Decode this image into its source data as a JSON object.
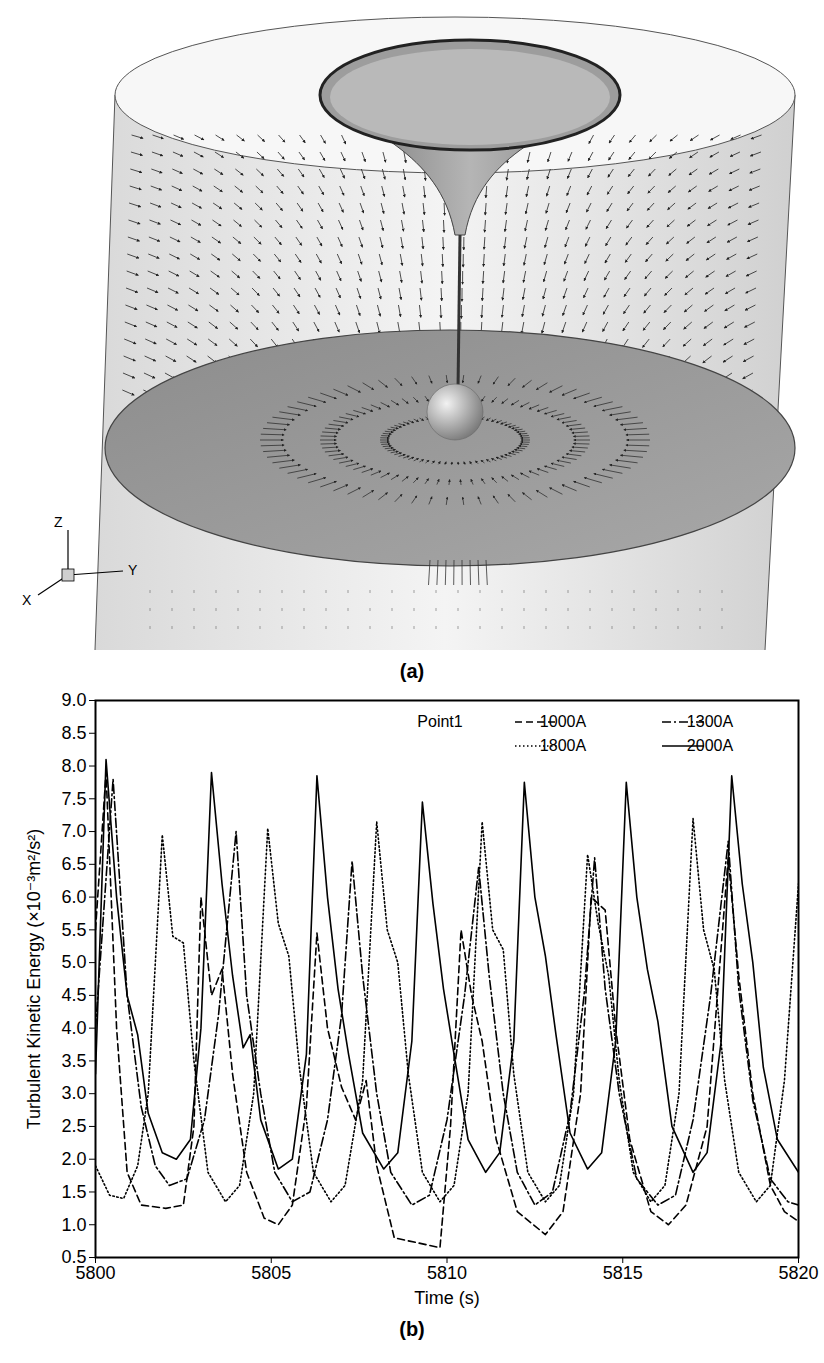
{
  "figure": {
    "panel_a": {
      "label": "(a)",
      "axis_labels": [
        "Z",
        "Y",
        "X"
      ]
    },
    "panel_b_label": "(b)"
  },
  "chart_data": {
    "type": "line",
    "x_label": "Time (s)",
    "y_label": "Turbulent Kinetic Energy (×10⁻³m²/s²)",
    "legend_title": "Point1",
    "legend": "upper right",
    "xlim": [
      5800,
      5820
    ],
    "xticks": [
      5800,
      5805,
      5810,
      5815,
      5820
    ],
    "ylim": [
      0.5,
      9.0
    ],
    "yticks": [
      {
        "value": 0.5,
        "label": "0.5"
      },
      {
        "value": 1,
        "label": "1.0"
      },
      {
        "value": 1.5,
        "label": "1.5"
      },
      {
        "value": 2,
        "label": "2.0"
      },
      {
        "value": 2.5,
        "label": "2.5"
      },
      {
        "value": 3,
        "label": "3.0"
      },
      {
        "value": 3.5,
        "label": "3.5"
      },
      {
        "value": 4,
        "label": "4.0"
      },
      {
        "value": 4.5,
        "label": "4.5"
      },
      {
        "value": 5,
        "label": "5.0"
      },
      {
        "value": 5.5,
        "label": "5.5"
      },
      {
        "value": 6,
        "label": "6.0"
      },
      {
        "value": 6.5,
        "label": "6.5"
      },
      {
        "value": 7,
        "label": "7.0"
      },
      {
        "value": 7.5,
        "label": "7.5"
      },
      {
        "value": 8,
        "label": "8.0"
      },
      {
        "value": 8.5,
        "label": "8.5"
      },
      {
        "value": 9,
        "label": "9.0"
      }
    ],
    "grid": false,
    "series": [
      {
        "name": "1000A",
        "color": "#000000",
        "line_style": "dashed",
        "x": [
          5800.0,
          5800.3,
          5800.6,
          5800.9,
          5801.3,
          5802.0,
          5802.5,
          5802.8,
          5803.0,
          5803.3,
          5803.6,
          5803.9,
          5804.3,
          5804.8,
          5805.2,
          5805.6,
          5806.0,
          5806.3,
          5806.6,
          5807.0,
          5807.4,
          5807.7,
          5808.0,
          5808.5,
          5809.2,
          5809.8,
          5810.1,
          5810.4,
          5810.7,
          5811.0,
          5811.4,
          5812.0,
          5812.8,
          5813.3,
          5813.8,
          5814.1,
          5814.5,
          5814.8,
          5815.2,
          5815.8,
          5816.3,
          5816.8,
          5817.4,
          5818.0,
          5818.3,
          5818.7,
          5819.2,
          5819.6,
          5820.0
        ],
        "values": [
          5.5,
          7.9,
          4.0,
          1.8,
          1.3,
          1.25,
          1.3,
          2.5,
          6.0,
          4.5,
          4.9,
          3.3,
          1.8,
          1.1,
          1.0,
          1.3,
          2.8,
          5.45,
          4.0,
          3.1,
          2.6,
          3.2,
          1.9,
          0.8,
          0.72,
          0.65,
          2.5,
          5.5,
          4.5,
          3.8,
          2.3,
          1.2,
          0.85,
          1.2,
          3.0,
          6.0,
          5.8,
          4.0,
          2.3,
          1.2,
          1.0,
          1.3,
          2.5,
          6.6,
          4.8,
          3.0,
          1.6,
          1.2,
          1.05
        ]
      },
      {
        "name": "1300A",
        "color": "#000000",
        "line_style": "dashdot",
        "x": [
          5800.0,
          5800.5,
          5800.9,
          5801.3,
          5801.7,
          5802.1,
          5802.6,
          5803.1,
          5803.5,
          5804.0,
          5804.3,
          5804.7,
          5805.1,
          5805.6,
          5806.1,
          5806.6,
          5807.0,
          5807.3,
          5807.6,
          5808.0,
          5808.4,
          5809.0,
          5809.5,
          5810.0,
          5810.5,
          5810.9,
          5811.2,
          5811.6,
          5812.0,
          5812.5,
          5813.0,
          5813.5,
          5813.9,
          5814.2,
          5814.5,
          5814.9,
          5815.4,
          5816.0,
          5816.5,
          5817.0,
          5817.5,
          5818.0,
          5818.3,
          5818.7,
          5819.2,
          5819.7,
          5820.0
        ],
        "values": [
          4.0,
          7.8,
          4.5,
          2.8,
          1.9,
          1.6,
          1.7,
          2.6,
          4.2,
          7.0,
          4.5,
          3.0,
          1.8,
          1.35,
          1.5,
          2.6,
          4.2,
          6.55,
          4.8,
          3.0,
          1.8,
          1.3,
          1.45,
          2.6,
          4.5,
          6.45,
          4.8,
          3.0,
          1.8,
          1.3,
          1.5,
          2.7,
          4.5,
          6.6,
          4.6,
          3.0,
          1.7,
          1.3,
          1.45,
          2.6,
          4.5,
          6.85,
          4.6,
          2.9,
          1.7,
          1.35,
          1.3
        ]
      },
      {
        "name": "1800A",
        "color": "#000000",
        "line_style": "dotted",
        "x": [
          5800.0,
          5800.4,
          5800.8,
          5801.2,
          5801.5,
          5801.9,
          5802.2,
          5802.5,
          5802.8,
          5803.2,
          5803.7,
          5804.1,
          5804.5,
          5804.9,
          5805.2,
          5805.5,
          5805.8,
          5806.2,
          5806.7,
          5807.1,
          5807.6,
          5808.0,
          5808.3,
          5808.6,
          5808.9,
          5809.3,
          5809.8,
          5810.2,
          5810.6,
          5811.0,
          5811.3,
          5811.6,
          5811.9,
          5812.3,
          5812.8,
          5813.2,
          5813.6,
          5814.0,
          5814.3,
          5814.6,
          5814.9,
          5815.3,
          5815.8,
          5816.2,
          5816.6,
          5817.0,
          5817.3,
          5817.6,
          5817.9,
          5818.3,
          5818.8,
          5819.2,
          5819.6,
          5820.0
        ],
        "values": [
          1.9,
          1.45,
          1.4,
          1.9,
          3.0,
          6.95,
          5.4,
          5.3,
          3.5,
          1.8,
          1.35,
          1.6,
          3.0,
          7.05,
          5.6,
          5.1,
          3.4,
          1.8,
          1.35,
          1.6,
          3.2,
          7.15,
          5.5,
          5.0,
          3.3,
          1.8,
          1.35,
          1.6,
          3.0,
          7.15,
          5.5,
          5.2,
          3.3,
          1.8,
          1.35,
          1.6,
          3.0,
          6.65,
          5.6,
          4.8,
          3.2,
          1.8,
          1.35,
          1.6,
          3.0,
          7.2,
          5.5,
          4.9,
          3.2,
          1.8,
          1.35,
          1.6,
          3.2,
          6.2
        ]
      },
      {
        "name": "2000A",
        "color": "#000000",
        "line_style": "solid",
        "x": [
          5800.0,
          5800.3,
          5800.6,
          5800.9,
          5801.2,
          5801.5,
          5801.9,
          5802.3,
          5802.7,
          5803.0,
          5803.3,
          5803.6,
          5803.9,
          5804.2,
          5804.4,
          5804.7,
          5805.2,
          5805.6,
          5806.0,
          5806.3,
          5806.6,
          5806.9,
          5807.2,
          5807.6,
          5808.2,
          5808.6,
          5809.0,
          5809.3,
          5809.6,
          5809.9,
          5810.2,
          5810.6,
          5811.1,
          5811.5,
          5811.9,
          5812.2,
          5812.5,
          5812.8,
          5813.1,
          5813.5,
          5814.0,
          5814.4,
          5814.8,
          5815.1,
          5815.4,
          5815.7,
          5816.0,
          5816.4,
          5817.0,
          5817.4,
          5817.8,
          5818.1,
          5818.4,
          5818.7,
          5819.0,
          5819.4,
          5820.0
        ],
        "values": [
          3.3,
          8.1,
          6.0,
          4.5,
          3.9,
          2.7,
          2.1,
          2.0,
          2.3,
          4.0,
          7.9,
          6.2,
          4.8,
          3.7,
          3.9,
          2.6,
          1.85,
          2.0,
          3.6,
          7.85,
          6.0,
          4.6,
          3.6,
          2.4,
          1.85,
          2.1,
          3.8,
          7.45,
          5.9,
          4.6,
          3.6,
          2.3,
          1.8,
          2.1,
          3.8,
          7.75,
          6.0,
          5.1,
          3.9,
          2.4,
          1.85,
          2.1,
          3.8,
          7.75,
          6.0,
          4.9,
          4.1,
          2.5,
          1.8,
          2.1,
          3.8,
          7.85,
          6.2,
          5.0,
          3.4,
          2.3,
          1.8
        ]
      }
    ]
  }
}
